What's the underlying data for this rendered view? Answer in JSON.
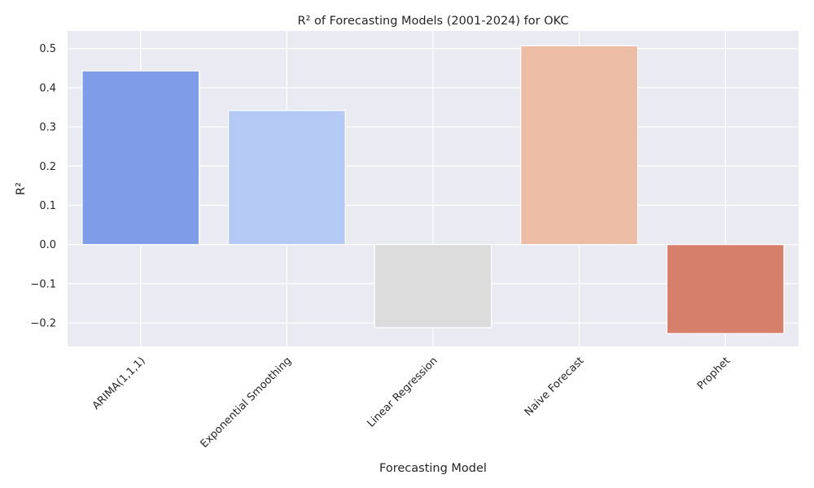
{
  "chart_data": {
    "type": "bar",
    "title": "R² of Forecasting Models (2001-2024) for OKC",
    "xlabel": "Forecasting Model",
    "ylabel": "R²",
    "categories": [
      "ARIMA(1,1,1)",
      "Exponential Smoothing",
      "Linear Regression",
      "Naive Forecast",
      "Prophet"
    ],
    "values": [
      0.443,
      0.342,
      -0.212,
      0.507,
      -0.227
    ],
    "colors": [
      "#7f9ce8",
      "#b5c9f5",
      "#dcdcdc",
      "#edbca5",
      "#d6806c"
    ],
    "yticks": [
      -0.2,
      -0.1,
      0.0,
      0.1,
      0.2,
      0.3,
      0.4,
      0.5
    ],
    "ytick_labels": [
      "−0.2",
      "−0.1",
      "0.0",
      "0.1",
      "0.2",
      "0.3",
      "0.4",
      "0.5"
    ],
    "ylim": [
      -0.26,
      0.545
    ],
    "grid": true,
    "legend": "none",
    "background_color": "#eaeaf2"
  }
}
